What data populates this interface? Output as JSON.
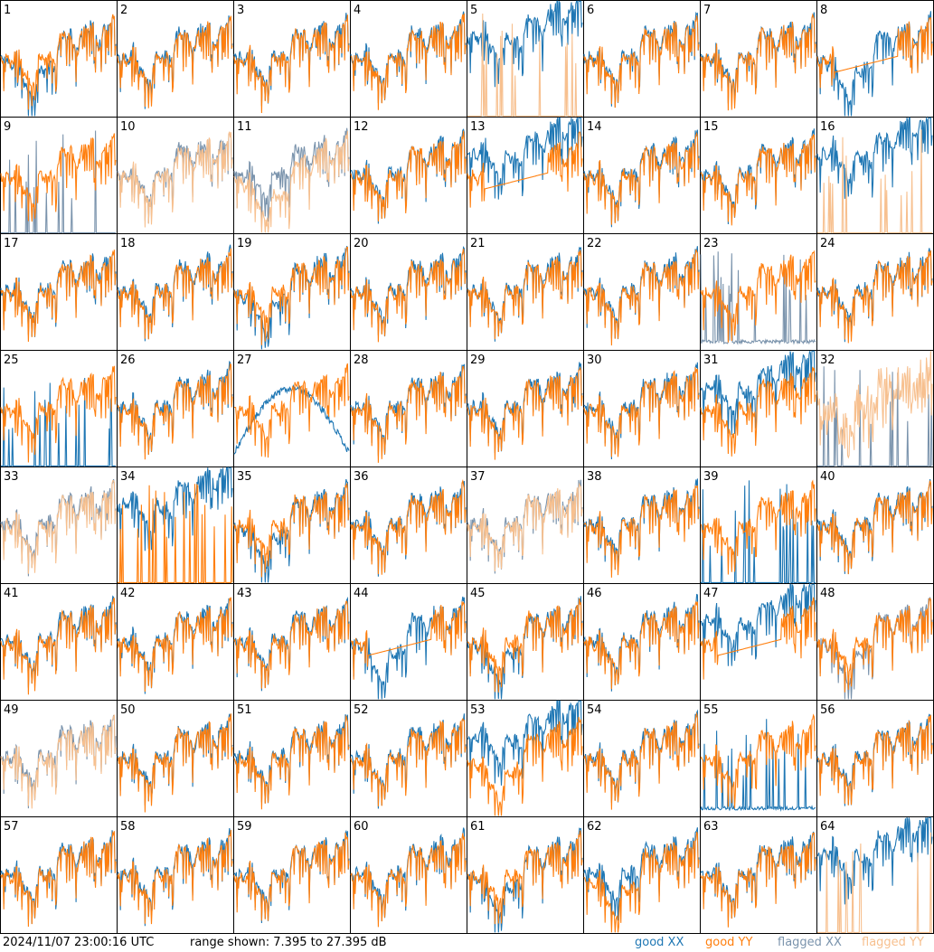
{
  "colors": {
    "good_xx": "#1f77b4",
    "good_yy": "#ff7f0e",
    "flagged_xx": "#7a93ac",
    "flagged_yy": "#f7c08f",
    "frame": "#000000"
  },
  "footer": {
    "timestamp": "2024/11/07 23:00:16 UTC",
    "range_text": "range shown: 7.395 to 27.395 dB"
  },
  "legend": {
    "good_xx": "good XX",
    "good_yy": "good YY",
    "flagged_xx": "flagged XX",
    "flagged_yy": "flagged YY"
  },
  "chart_data": {
    "type": "line",
    "layout": "8x8 small multiples (tiles 1-64)",
    "ylim": [
      7.395,
      27.395
    ],
    "yunit": "dB",
    "grid": false,
    "legend_position": "bottom-right",
    "series_kinds": [
      "good XX",
      "good YY",
      "flagged XX",
      "flagged YY"
    ],
    "tiles": [
      {
        "label": "1",
        "xx": "good",
        "yy": "good",
        "xx_shape": "dipped",
        "yy_shape": "normal"
      },
      {
        "label": "2",
        "xx": "good",
        "yy": "good",
        "xx_shape": "normal",
        "yy_shape": "normal"
      },
      {
        "label": "3",
        "xx": "good",
        "yy": "good",
        "xx_shape": "normal",
        "yy_shape": "normal"
      },
      {
        "label": "4",
        "xx": "good",
        "yy": "good",
        "xx_shape": "normal",
        "yy_shape": "normal"
      },
      {
        "label": "5",
        "xx": "good",
        "yy": "flagged",
        "xx_shape": "high",
        "yy_shape": "spikes"
      },
      {
        "label": "6",
        "xx": "good",
        "yy": "good",
        "xx_shape": "normal",
        "yy_shape": "normal"
      },
      {
        "label": "7",
        "xx": "good",
        "yy": "good",
        "xx_shape": "normal",
        "yy_shape": "normal"
      },
      {
        "label": "8",
        "xx": "good",
        "yy": "good",
        "xx_shape": "dipped",
        "yy_shape": "flatline"
      },
      {
        "label": "9",
        "xx": "flagged",
        "yy": "good",
        "xx_shape": "spikes",
        "yy_shape": "normal"
      },
      {
        "label": "10",
        "xx": "flagged",
        "yy": "flagged",
        "xx_shape": "normal",
        "yy_shape": "normal"
      },
      {
        "label": "11",
        "xx": "flagged",
        "yy": "flagged",
        "xx_shape": "normal",
        "yy_shape": "low"
      },
      {
        "label": "12",
        "xx": "good",
        "yy": "good",
        "xx_shape": "normal",
        "yy_shape": "normal"
      },
      {
        "label": "13",
        "xx": "good",
        "yy": "good",
        "xx_shape": "high",
        "yy_shape": "flatline"
      },
      {
        "label": "14",
        "xx": "good",
        "yy": "good",
        "xx_shape": "normal",
        "yy_shape": "normal"
      },
      {
        "label": "15",
        "xx": "good",
        "yy": "good",
        "xx_shape": "normal",
        "yy_shape": "normal"
      },
      {
        "label": "16",
        "xx": "good",
        "yy": "flagged",
        "xx_shape": "high",
        "yy_shape": "spikes"
      },
      {
        "label": "17",
        "xx": "good",
        "yy": "good",
        "xx_shape": "normal",
        "yy_shape": "normal"
      },
      {
        "label": "18",
        "xx": "good",
        "yy": "good",
        "xx_shape": "normal",
        "yy_shape": "normal"
      },
      {
        "label": "19",
        "xx": "good",
        "yy": "good",
        "xx_shape": "dipped",
        "yy_shape": "normal"
      },
      {
        "label": "20",
        "xx": "good",
        "yy": "good",
        "xx_shape": "normal",
        "yy_shape": "normal"
      },
      {
        "label": "21",
        "xx": "good",
        "yy": "good",
        "xx_shape": "normal",
        "yy_shape": "normal"
      },
      {
        "label": "22",
        "xx": "good",
        "yy": "good",
        "xx_shape": "normal",
        "yy_shape": "normal"
      },
      {
        "label": "23",
        "xx": "flagged",
        "yy": "good",
        "xx_shape": "floor",
        "yy_shape": "normal"
      },
      {
        "label": "24",
        "xx": "good",
        "yy": "good",
        "xx_shape": "normal",
        "yy_shape": "normal"
      },
      {
        "label": "25",
        "xx": "good",
        "yy": "good",
        "xx_shape": "spikes",
        "yy_shape": "normal"
      },
      {
        "label": "26",
        "xx": "good",
        "yy": "good",
        "xx_shape": "normal",
        "yy_shape": "normal"
      },
      {
        "label": "27",
        "xx": "good",
        "yy": "good",
        "xx_shape": "arc",
        "yy_shape": "normal"
      },
      {
        "label": "28",
        "xx": "good",
        "yy": "good",
        "xx_shape": "normal",
        "yy_shape": "normal"
      },
      {
        "label": "29",
        "xx": "good",
        "yy": "good",
        "xx_shape": "normal",
        "yy_shape": "normal"
      },
      {
        "label": "30",
        "xx": "good",
        "yy": "good",
        "xx_shape": "normal",
        "yy_shape": "normal"
      },
      {
        "label": "31",
        "xx": "good",
        "yy": "good",
        "xx_shape": "high",
        "yy_shape": "normal"
      },
      {
        "label": "32",
        "xx": "flagged",
        "yy": "flagged",
        "xx_shape": "spikes",
        "yy_shape": "noisy"
      },
      {
        "label": "33",
        "xx": "flagged",
        "yy": "flagged",
        "xx_shape": "normal",
        "yy_shape": "normal"
      },
      {
        "label": "34",
        "xx": "good",
        "yy": "good",
        "xx_shape": "high",
        "yy_shape": "spikes"
      },
      {
        "label": "35",
        "xx": "good",
        "yy": "good",
        "xx_shape": "dipped",
        "yy_shape": "normal"
      },
      {
        "label": "36",
        "xx": "good",
        "yy": "good",
        "xx_shape": "normal",
        "yy_shape": "normal"
      },
      {
        "label": "37",
        "xx": "flagged",
        "yy": "flagged",
        "xx_shape": "normal",
        "yy_shape": "normal"
      },
      {
        "label": "38",
        "xx": "good",
        "yy": "good",
        "xx_shape": "normal",
        "yy_shape": "normal"
      },
      {
        "label": "39",
        "xx": "good",
        "yy": "good",
        "xx_shape": "spikes",
        "yy_shape": "normal"
      },
      {
        "label": "40",
        "xx": "good",
        "yy": "good",
        "xx_shape": "normal",
        "yy_shape": "normal"
      },
      {
        "label": "41",
        "xx": "good",
        "yy": "good",
        "xx_shape": "normal",
        "yy_shape": "normal"
      },
      {
        "label": "42",
        "xx": "good",
        "yy": "good",
        "xx_shape": "normal",
        "yy_shape": "normal"
      },
      {
        "label": "43",
        "xx": "good",
        "yy": "good",
        "xx_shape": "normal",
        "yy_shape": "normal"
      },
      {
        "label": "44",
        "xx": "good",
        "yy": "good",
        "xx_shape": "dipped",
        "yy_shape": "flatline"
      },
      {
        "label": "45",
        "xx": "good",
        "yy": "good",
        "xx_shape": "dipped",
        "yy_shape": "normal"
      },
      {
        "label": "46",
        "xx": "good",
        "yy": "good",
        "xx_shape": "normal",
        "yy_shape": "normal"
      },
      {
        "label": "47",
        "xx": "good",
        "yy": "good",
        "xx_shape": "high",
        "yy_shape": "flatline"
      },
      {
        "label": "48",
        "xx": "flagged",
        "yy": "good",
        "xx_shape": "dipped",
        "yy_shape": "normal"
      },
      {
        "label": "49",
        "xx": "flagged",
        "yy": "flagged",
        "xx_shape": "normal",
        "yy_shape": "normal"
      },
      {
        "label": "50",
        "xx": "good",
        "yy": "good",
        "xx_shape": "normal",
        "yy_shape": "normal"
      },
      {
        "label": "51",
        "xx": "good",
        "yy": "good",
        "xx_shape": "normal",
        "yy_shape": "normal"
      },
      {
        "label": "52",
        "xx": "good",
        "yy": "good",
        "xx_shape": "normal",
        "yy_shape": "normal"
      },
      {
        "label": "53",
        "xx": "good",
        "yy": "good",
        "xx_shape": "high",
        "yy_shape": "dipped"
      },
      {
        "label": "54",
        "xx": "good",
        "yy": "good",
        "xx_shape": "normal",
        "yy_shape": "normal"
      },
      {
        "label": "55",
        "xx": "good",
        "yy": "good",
        "xx_shape": "floor",
        "yy_shape": "normal"
      },
      {
        "label": "56",
        "xx": "good",
        "yy": "good",
        "xx_shape": "normal",
        "yy_shape": "normal"
      },
      {
        "label": "57",
        "xx": "good",
        "yy": "good",
        "xx_shape": "normal",
        "yy_shape": "normal"
      },
      {
        "label": "58",
        "xx": "good",
        "yy": "good",
        "xx_shape": "normal",
        "yy_shape": "normal"
      },
      {
        "label": "59",
        "xx": "good",
        "yy": "good",
        "xx_shape": "normal",
        "yy_shape": "normal"
      },
      {
        "label": "60",
        "xx": "good",
        "yy": "good",
        "xx_shape": "normal",
        "yy_shape": "normal"
      },
      {
        "label": "61",
        "xx": "good",
        "yy": "good",
        "xx_shape": "dipped",
        "yy_shape": "normal"
      },
      {
        "label": "62",
        "xx": "good",
        "yy": "good",
        "xx_shape": "normal",
        "yy_shape": "dipped"
      },
      {
        "label": "63",
        "xx": "good",
        "yy": "good",
        "xx_shape": "normal",
        "yy_shape": "normal"
      },
      {
        "label": "64",
        "xx": "good",
        "yy": "flagged",
        "xx_shape": "high",
        "yy_shape": "spikes"
      }
    ]
  }
}
